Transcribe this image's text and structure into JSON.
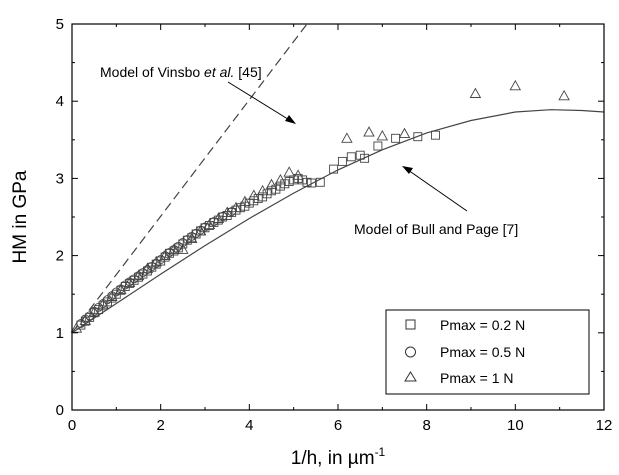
{
  "chart_data": {
    "type": "scatter",
    "xlabel": "1/h, in µm",
    "xlabel_superscript": "-1",
    "ylabel": "HM in GPa",
    "xlim": [
      0,
      12
    ],
    "ylim": [
      0,
      5
    ],
    "xticks": [
      0,
      2,
      4,
      6,
      8,
      10,
      12
    ],
    "yticks": [
      0,
      1,
      2,
      3,
      4,
      5
    ],
    "grid": false,
    "legend_position": "bottom-right",
    "legend": [
      {
        "label": "Pmax = 0.2 N",
        "marker": "square"
      },
      {
        "label": "Pmax = 0.5 N",
        "marker": "circle"
      },
      {
        "label": "Pmax = 1 N",
        "marker": "triangle"
      }
    ],
    "series": [
      {
        "name": "Pmax = 0.2 N",
        "marker": "square",
        "points": [
          [
            0.2,
            1.1
          ],
          [
            0.3,
            1.15
          ],
          [
            0.4,
            1.2
          ],
          [
            0.5,
            1.26
          ],
          [
            0.6,
            1.3
          ],
          [
            0.7,
            1.35
          ],
          [
            0.8,
            1.4
          ],
          [
            0.9,
            1.45
          ],
          [
            1.0,
            1.5
          ],
          [
            1.1,
            1.55
          ],
          [
            1.2,
            1.6
          ],
          [
            1.3,
            1.64
          ],
          [
            1.4,
            1.68
          ],
          [
            1.5,
            1.72
          ],
          [
            1.6,
            1.76
          ],
          [
            1.7,
            1.8
          ],
          [
            1.8,
            1.85
          ],
          [
            1.9,
            1.89
          ],
          [
            2.0,
            1.93
          ],
          [
            2.1,
            1.98
          ],
          [
            2.2,
            2.03
          ],
          [
            2.3,
            2.06
          ],
          [
            2.4,
            2.1
          ],
          [
            2.5,
            2.15
          ],
          [
            2.6,
            2.2
          ],
          [
            2.7,
            2.23
          ],
          [
            2.8,
            2.28
          ],
          [
            2.9,
            2.32
          ],
          [
            3.0,
            2.36
          ],
          [
            3.1,
            2.39
          ],
          [
            3.2,
            2.43
          ],
          [
            3.3,
            2.46
          ],
          [
            3.4,
            2.5
          ],
          [
            3.5,
            2.52
          ],
          [
            3.6,
            2.56
          ],
          [
            3.7,
            2.59
          ],
          [
            3.8,
            2.62
          ],
          [
            3.9,
            2.64
          ],
          [
            4.0,
            2.68
          ],
          [
            4.1,
            2.71
          ],
          [
            4.2,
            2.74
          ],
          [
            4.3,
            2.76
          ],
          [
            4.4,
            2.8
          ],
          [
            4.5,
            2.84
          ],
          [
            4.6,
            2.86
          ],
          [
            4.7,
            2.9
          ],
          [
            4.8,
            2.93
          ],
          [
            4.9,
            2.96
          ],
          [
            5.0,
            2.98
          ],
          [
            5.1,
            3.0
          ],
          [
            5.2,
            2.98
          ],
          [
            5.3,
            2.95
          ],
          [
            5.4,
            2.94
          ],
          [
            5.6,
            2.95
          ],
          [
            5.9,
            3.12
          ],
          [
            6.1,
            3.22
          ],
          [
            6.3,
            3.28
          ],
          [
            6.5,
            3.3
          ],
          [
            6.6,
            3.26
          ],
          [
            6.9,
            3.42
          ],
          [
            7.3,
            3.52
          ],
          [
            7.8,
            3.54
          ],
          [
            8.2,
            3.56
          ]
        ]
      },
      {
        "name": "Pmax = 0.5 N",
        "marker": "circle",
        "points": [
          [
            0.2,
            1.12
          ],
          [
            0.3,
            1.18
          ],
          [
            0.4,
            1.22
          ],
          [
            0.5,
            1.28
          ],
          [
            0.6,
            1.33
          ],
          [
            0.7,
            1.38
          ],
          [
            0.8,
            1.43
          ],
          [
            0.9,
            1.48
          ],
          [
            1.0,
            1.53
          ],
          [
            1.1,
            1.57
          ],
          [
            1.2,
            1.62
          ],
          [
            1.3,
            1.66
          ],
          [
            1.4,
            1.7
          ],
          [
            1.5,
            1.74
          ],
          [
            1.6,
            1.78
          ],
          [
            1.7,
            1.82
          ],
          [
            1.8,
            1.86
          ],
          [
            1.9,
            1.9
          ],
          [
            2.0,
            1.95
          ],
          [
            2.1,
            2.0
          ],
          [
            2.2,
            2.04
          ],
          [
            2.3,
            2.08
          ],
          [
            2.4,
            2.12
          ],
          [
            2.5,
            2.17
          ],
          [
            2.6,
            2.21
          ],
          [
            2.7,
            2.25
          ],
          [
            2.8,
            2.29
          ],
          [
            2.9,
            2.33
          ],
          [
            3.0,
            2.37
          ],
          [
            3.2,
            2.44
          ],
          [
            3.4,
            2.51
          ],
          [
            3.6,
            2.57
          ]
        ]
      },
      {
        "name": "Pmax = 1 N",
        "marker": "triangle",
        "points": [
          [
            0.1,
            1.06
          ],
          [
            0.3,
            1.16
          ],
          [
            0.5,
            1.27
          ],
          [
            0.7,
            1.37
          ],
          [
            0.9,
            1.47
          ],
          [
            1.1,
            1.56
          ],
          [
            1.3,
            1.65
          ],
          [
            1.5,
            1.74
          ],
          [
            1.7,
            1.83
          ],
          [
            1.9,
            1.92
          ],
          [
            2.1,
            2.0
          ],
          [
            2.3,
            2.08
          ],
          [
            2.5,
            2.08
          ],
          [
            2.7,
            2.22
          ],
          [
            2.9,
            2.32
          ],
          [
            3.1,
            2.4
          ],
          [
            3.3,
            2.48
          ],
          [
            3.5,
            2.56
          ],
          [
            3.7,
            2.62
          ],
          [
            3.9,
            2.7
          ],
          [
            4.1,
            2.78
          ],
          [
            4.3,
            2.84
          ],
          [
            4.5,
            2.92
          ],
          [
            4.7,
            2.98
          ],
          [
            4.9,
            3.08
          ],
          [
            5.1,
            3.04
          ],
          [
            6.2,
            3.52
          ],
          [
            6.7,
            3.6
          ],
          [
            7.0,
            3.55
          ],
          [
            7.5,
            3.58
          ],
          [
            9.1,
            4.1
          ],
          [
            10.0,
            4.2
          ],
          [
            11.1,
            4.07
          ]
        ]
      }
    ],
    "models": [
      {
        "label_parts": [
          "Model of Vinsbo ",
          "et al.",
          " [45]"
        ],
        "style": "dashed",
        "line": [
          [
            0,
            1.0
          ],
          [
            5.3,
            5.0
          ]
        ]
      },
      {
        "label_parts": [
          "Model of Bull and Page [7]"
        ],
        "style": "solid",
        "curve": [
          [
            0,
            1.0
          ],
          [
            1,
            1.38
          ],
          [
            2,
            1.76
          ],
          [
            3,
            2.13
          ],
          [
            4,
            2.48
          ],
          [
            5,
            2.81
          ],
          [
            6,
            3.11
          ],
          [
            7,
            3.37
          ],
          [
            8,
            3.59
          ],
          [
            9,
            3.75
          ],
          [
            10,
            3.86
          ],
          [
            10.8,
            3.89
          ],
          [
            11.5,
            3.88
          ],
          [
            12,
            3.86
          ]
        ]
      }
    ]
  }
}
